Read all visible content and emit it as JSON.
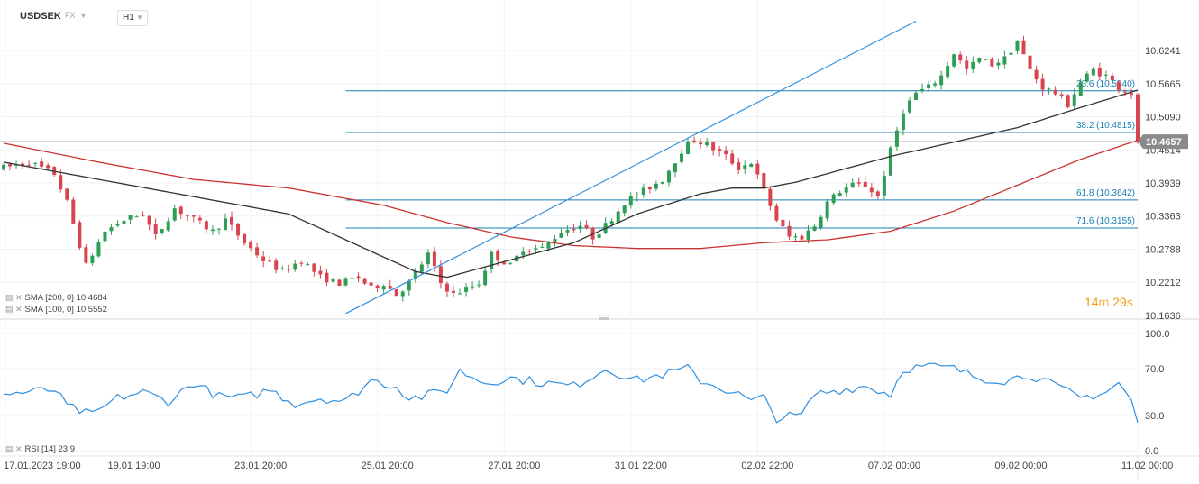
{
  "header": {
    "symbol": "USDSEK",
    "market": "FX",
    "timeframe": "H1"
  },
  "timer": {
    "minutes": "14",
    "seconds": "29",
    "m_unit": "m",
    "s_unit": "s"
  },
  "legend": {
    "sma200": "SMA [200, 0] 10.4684",
    "sma100": "SMA [100, 0] 10.5552",
    "rsi": "RSI [14] 23.9"
  },
  "colors": {
    "bull": "#2e9e57",
    "bear": "#d9454f",
    "sma200": "#cc3333",
    "sma100": "#333333",
    "fib": "#1a7fb5",
    "trendline": "#2f8fe0",
    "rsi": "#2f8fe0",
    "price_badge": "#8a8a8a"
  },
  "chart_data": [
    {
      "type": "candlestick",
      "title": "USDSEK H1",
      "y_axis_ticks": [
        "10.6241",
        "10.5665",
        "10.5090",
        "10.4514",
        "10.3939",
        "10.3363",
        "10.2788",
        "10.2212",
        "10.1636"
      ],
      "ylim": [
        10.1636,
        10.6241
      ],
      "current_price": "10.4657",
      "x_tick_labels": [
        "17.01.2023  19:00",
        "19.01  19:00",
        "23.01  20:00",
        "25.01  20:00",
        "27.01  20:00",
        "31.01  22:00",
        "02.02  22:00",
        "07.02  00:00",
        "09.02  00:00",
        "11.02  00:00"
      ],
      "price_path": [
        [
          0,
          10.42
        ],
        [
          4,
          10.43
        ],
        [
          8,
          10.41
        ],
        [
          10,
          10.36
        ],
        [
          13,
          10.25
        ],
        [
          16,
          10.31
        ],
        [
          19,
          10.33
        ],
        [
          22,
          10.34
        ],
        [
          24,
          10.3
        ],
        [
          27,
          10.35
        ],
        [
          30,
          10.33
        ],
        [
          33,
          10.31
        ],
        [
          35,
          10.33
        ],
        [
          38,
          10.29
        ],
        [
          41,
          10.26
        ],
        [
          44,
          10.24
        ],
        [
          47,
          10.26
        ],
        [
          50,
          10.23
        ],
        [
          53,
          10.22
        ],
        [
          56,
          10.23
        ],
        [
          58,
          10.21
        ],
        [
          60,
          10.22
        ],
        [
          62,
          10.2
        ],
        [
          64,
          10.22
        ],
        [
          67,
          10.27
        ],
        [
          69,
          10.22
        ],
        [
          71,
          10.2
        ],
        [
          73,
          10.21
        ],
        [
          75,
          10.22
        ],
        [
          77,
          10.27
        ],
        [
          80,
          10.25
        ],
        [
          82,
          10.28
        ],
        [
          85,
          10.28
        ],
        [
          88,
          10.31
        ],
        [
          91,
          10.32
        ],
        [
          93,
          10.3
        ],
        [
          95,
          10.32
        ],
        [
          98,
          10.36
        ],
        [
          101,
          10.38
        ],
        [
          104,
          10.4
        ],
        [
          107,
          10.45
        ],
        [
          109,
          10.47
        ],
        [
          111,
          10.46
        ],
        [
          114,
          10.44
        ],
        [
          116,
          10.42
        ],
        [
          118,
          10.43
        ],
        [
          120,
          10.38
        ],
        [
          122,
          10.33
        ],
        [
          124,
          10.3
        ],
        [
          126,
          10.3
        ],
        [
          128,
          10.32
        ],
        [
          130,
          10.36
        ],
        [
          132,
          10.38
        ],
        [
          134,
          10.39
        ],
        [
          136,
          10.39
        ],
        [
          138,
          10.37
        ],
        [
          140,
          10.45
        ],
        [
          142,
          10.52
        ],
        [
          144,
          10.55
        ],
        [
          146,
          10.56
        ],
        [
          148,
          10.58
        ],
        [
          150,
          10.62
        ],
        [
          152,
          10.59
        ],
        [
          154,
          10.61
        ],
        [
          156,
          10.6
        ],
        [
          158,
          10.61
        ],
        [
          160,
          10.64
        ],
        [
          162,
          10.59
        ],
        [
          164,
          10.56
        ],
        [
          166,
          10.55
        ],
        [
          168,
          10.53
        ],
        [
          170,
          10.57
        ],
        [
          172,
          10.59
        ],
        [
          174,
          10.58
        ],
        [
          176,
          10.56
        ],
        [
          178,
          10.55
        ],
        [
          179,
          10.46
        ]
      ],
      "bar_count": 180,
      "series": [
        {
          "name": "SMA [200, 0]",
          "value": "10.4684",
          "path": [
            [
              0,
              10.463
            ],
            [
              15,
              10.43
            ],
            [
              30,
              10.4
            ],
            [
              45,
              10.385
            ],
            [
              60,
              10.355
            ],
            [
              70,
              10.325
            ],
            [
              80,
              10.3
            ],
            [
              90,
              10.285
            ],
            [
              100,
              10.28
            ],
            [
              110,
              10.28
            ],
            [
              120,
              10.29
            ],
            [
              130,
              10.295
            ],
            [
              140,
              10.31
            ],
            [
              150,
              10.345
            ],
            [
              160,
              10.39
            ],
            [
              170,
              10.435
            ],
            [
              179,
              10.468
            ]
          ]
        },
        {
          "name": "SMA [100, 0]",
          "value": "10.5552",
          "path": [
            [
              0,
              10.43
            ],
            [
              15,
              10.4
            ],
            [
              30,
              10.37
            ],
            [
              45,
              10.34
            ],
            [
              55,
              10.29
            ],
            [
              65,
              10.24
            ],
            [
              70,
              10.23
            ],
            [
              80,
              10.26
            ],
            [
              90,
              10.29
            ],
            [
              100,
              10.34
            ],
            [
              110,
              10.375
            ],
            [
              115,
              10.385
            ],
            [
              120,
              10.385
            ],
            [
              125,
              10.395
            ],
            [
              130,
              10.41
            ],
            [
              140,
              10.44
            ],
            [
              150,
              10.465
            ],
            [
              160,
              10.49
            ],
            [
              170,
              10.525
            ],
            [
              179,
              10.5552
            ]
          ]
        }
      ],
      "fibonacci": [
        {
          "label": "23.6 (10.5540)",
          "value": 10.554
        },
        {
          "label": "38.2 (10.4815)",
          "value": 10.4815
        },
        {
          "label": "61.8 (10.3642)",
          "value": 10.3642
        },
        {
          "label": "71.6 (10.3155)",
          "value": 10.3155
        }
      ],
      "trendline": {
        "from": [
          54,
          10.167
        ],
        "to": [
          144,
          10.675
        ]
      }
    },
    {
      "type": "line",
      "name": "RSI [14]",
      "last_value": "23.9",
      "y_axis_ticks": [
        "100.0",
        "70.0",
        "30.0",
        "0.0"
      ],
      "ylim": [
        0,
        100
      ],
      "path": [
        [
          0,
          48
        ],
        [
          8,
          52
        ],
        [
          10,
          38
        ],
        [
          14,
          30
        ],
        [
          18,
          45
        ],
        [
          22,
          50
        ],
        [
          26,
          42
        ],
        [
          30,
          58
        ],
        [
          34,
          46
        ],
        [
          38,
          45
        ],
        [
          42,
          52
        ],
        [
          46,
          40
        ],
        [
          50,
          45
        ],
        [
          54,
          42
        ],
        [
          58,
          60
        ],
        [
          62,
          55
        ],
        [
          64,
          45
        ],
        [
          66,
          46
        ],
        [
          70,
          52
        ],
        [
          72,
          68
        ],
        [
          76,
          58
        ],
        [
          80,
          62
        ],
        [
          85,
          58
        ],
        [
          90,
          55
        ],
        [
          95,
          70
        ],
        [
          100,
          60
        ],
        [
          104,
          65
        ],
        [
          108,
          70
        ],
        [
          110,
          60
        ],
        [
          116,
          48
        ],
        [
          118,
          42
        ],
        [
          120,
          45
        ],
        [
          122,
          28
        ],
        [
          126,
          30
        ],
        [
          128,
          48
        ],
        [
          132,
          52
        ],
        [
          136,
          55
        ],
        [
          140,
          48
        ],
        [
          142,
          70
        ],
        [
          146,
          72
        ],
        [
          150,
          70
        ],
        [
          154,
          62
        ],
        [
          158,
          60
        ],
        [
          162,
          65
        ],
        [
          166,
          55
        ],
        [
          170,
          45
        ],
        [
          174,
          50
        ],
        [
          176,
          58
        ],
        [
          178,
          42
        ],
        [
          179,
          23.9
        ]
      ]
    }
  ]
}
